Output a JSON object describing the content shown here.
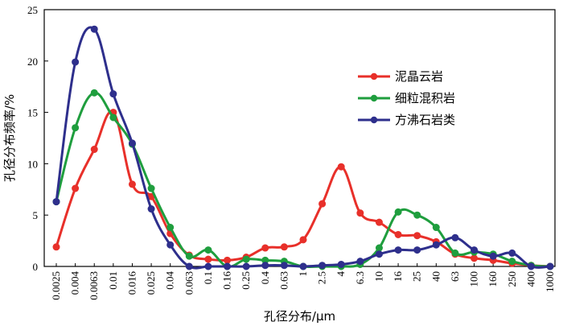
{
  "chart_data": {
    "type": "line",
    "title": "",
    "xlabel": "孔径分布/μm",
    "ylabel": "孔径分布频率/%",
    "ylim": [
      0,
      25
    ],
    "yticks": [
      0,
      5,
      10,
      15,
      20,
      25
    ],
    "categories": [
      "0.0025",
      "0.004",
      "0.0063",
      "0.01",
      "0.016",
      "0.025",
      "0.04",
      "0.063",
      "0.1",
      "0.16",
      "0.25",
      "0.4",
      "0.63",
      "1",
      "2.5",
      "4",
      "6.3",
      "10",
      "16",
      "25",
      "40",
      "63",
      "100",
      "160",
      "250",
      "400",
      "1000"
    ],
    "grid": false,
    "legend_position": "right-center",
    "series": [
      {
        "name": "泥晶云岩",
        "color": "#e8302a",
        "values": [
          1.9,
          7.6,
          11.4,
          15.0,
          8.0,
          6.8,
          3.2,
          1.1,
          0.7,
          0.6,
          0.9,
          1.8,
          1.9,
          2.6,
          6.1,
          9.7,
          5.2,
          4.3,
          3.1,
          3.0,
          2.4,
          1.2,
          0.8,
          0.6,
          0.3,
          0.1,
          0.0
        ]
      },
      {
        "name": "细粒混积岩",
        "color": "#1f9e3e",
        "values": [
          6.3,
          13.5,
          16.9,
          14.5,
          11.9,
          7.6,
          3.8,
          1.0,
          1.6,
          0.0,
          0.7,
          0.6,
          0.5,
          0.0,
          0.0,
          0.0,
          0.2,
          1.8,
          5.3,
          5.0,
          3.8,
          1.3,
          1.4,
          1.2,
          0.5,
          0.1,
          0.0
        ]
      },
      {
        "name": "方沸石岩类",
        "color": "#2e2f8c",
        "values": [
          6.3,
          19.9,
          23.1,
          16.8,
          12.0,
          5.6,
          2.1,
          0.0,
          0.0,
          0.0,
          0.0,
          0.1,
          0.1,
          0.0,
          0.1,
          0.2,
          0.5,
          1.2,
          1.6,
          1.6,
          2.1,
          2.8,
          1.6,
          1.0,
          1.3,
          0.0,
          0.0
        ]
      }
    ]
  }
}
